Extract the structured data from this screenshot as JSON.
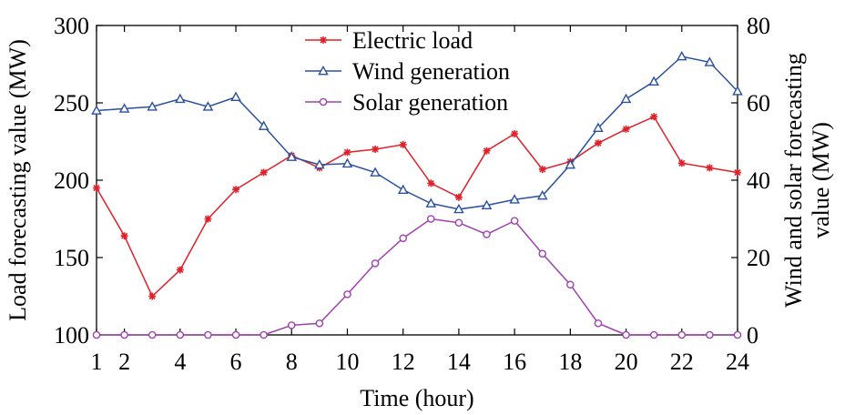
{
  "chart_data": {
    "type": "line",
    "x": [
      1,
      2,
      3,
      4,
      5,
      6,
      7,
      8,
      9,
      10,
      11,
      12,
      13,
      14,
      15,
      16,
      17,
      18,
      19,
      20,
      21,
      22,
      23,
      24
    ],
    "x_ticks": [
      1,
      2,
      4,
      6,
      8,
      10,
      12,
      14,
      16,
      18,
      20,
      22,
      24
    ],
    "xlim": [
      1,
      24
    ],
    "xlabel": "Time (hour)",
    "ylabel_left": "Load forecasting value (MW)",
    "ylabel_right": "Wind and solar forecasting value (MW)",
    "ylim_left": [
      100,
      300
    ],
    "yticks_left": [
      100,
      150,
      200,
      250,
      300
    ],
    "ylim_right": [
      0,
      80
    ],
    "yticks_right": [
      0,
      20,
      40,
      60,
      80
    ],
    "grid": false,
    "legend_position": "top-center",
    "series": [
      {
        "name": "Electric load",
        "axis": "left",
        "color": "#e0202a",
        "marker": "asterisk",
        "values": [
          195,
          164,
          125,
          142,
          175,
          194,
          205,
          216,
          208,
          218,
          220,
          223,
          198,
          189,
          219,
          230,
          207,
          212,
          224,
          233,
          241,
          211,
          208,
          205
        ]
      },
      {
        "name": "Wind generation",
        "axis": "right",
        "color": "#2a50a0",
        "marker": "triangle",
        "values": [
          58,
          58.5,
          59,
          61,
          59,
          61.5,
          54,
          46,
          44,
          44.3,
          42,
          37.5,
          34,
          32.5,
          33.5,
          35,
          36,
          44,
          53.5,
          61,
          65.5,
          72,
          70.5,
          63
        ]
      },
      {
        "name": "Solar generation",
        "axis": "right",
        "color": "#a040b0",
        "marker": "circle",
        "values": [
          0,
          0,
          0,
          0,
          0,
          0,
          0,
          2.5,
          3,
          10.5,
          18.5,
          25,
          30,
          29,
          26,
          29.5,
          21,
          13,
          3,
          0,
          0,
          0,
          0,
          0
        ]
      }
    ]
  }
}
